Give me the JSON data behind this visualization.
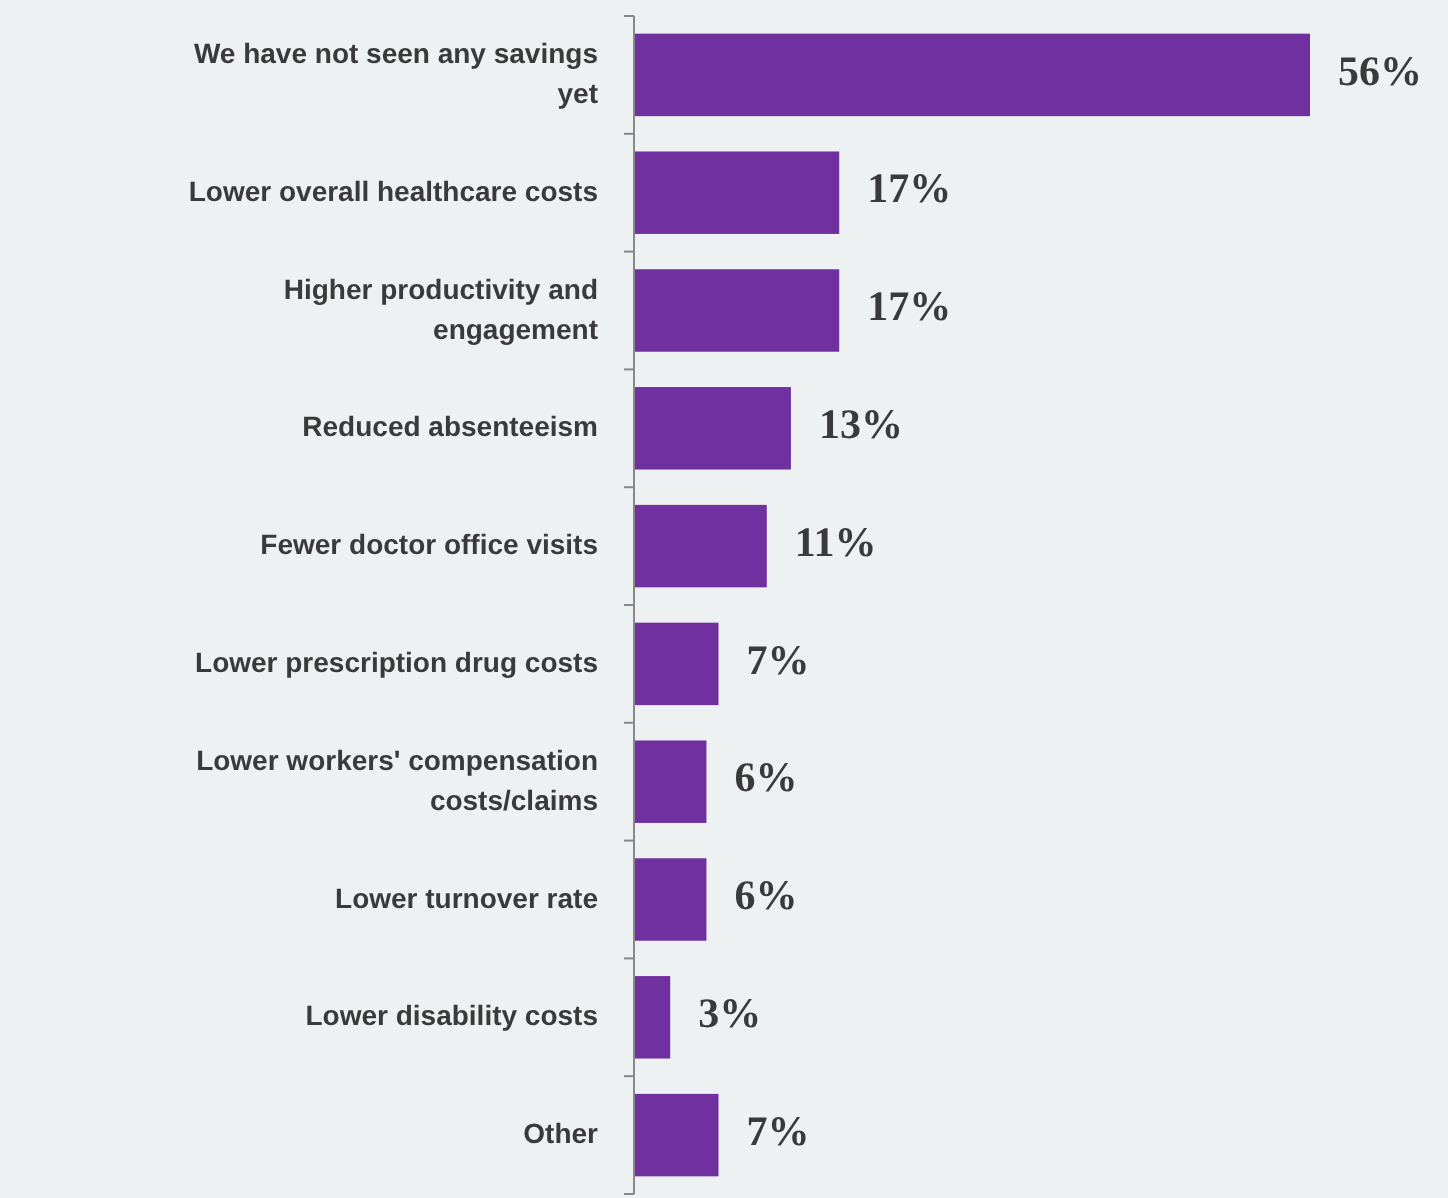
{
  "chart_data": {
    "type": "bar",
    "orientation": "horizontal",
    "categories": [
      "We have not seen any savings yet",
      "Lower overall healthcare costs",
      "Higher productivity and engagement",
      "Reduced absenteeism",
      "Fewer doctor office visits",
      "Lower prescription drug costs",
      "Lower workers' compensation costs/claims",
      "Lower turnover rate",
      "Lower disability costs",
      "Other"
    ],
    "values": [
      56,
      17,
      17,
      13,
      11,
      7,
      6,
      6,
      3,
      7
    ],
    "value_labels": [
      "56%",
      "17%",
      "17%",
      "13%",
      "11%",
      "7%",
      "6%",
      "6%",
      "3%",
      "7%"
    ],
    "color": "#7030a0"
  }
}
